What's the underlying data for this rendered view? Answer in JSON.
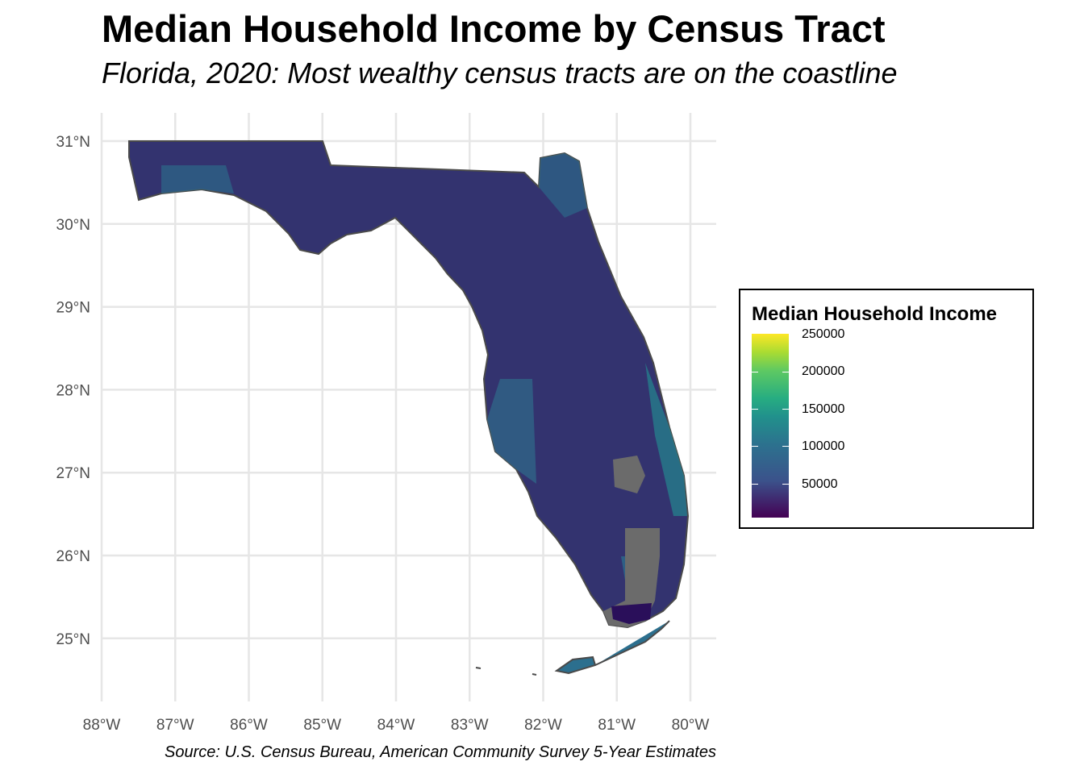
{
  "title": "Median Household Income by Census Tract",
  "subtitle": "Florida, 2020: Most wealthy census tracts are on the coastline",
  "caption": "Source: U.S. Census Bureau, American Community Survey 5-Year Estimates",
  "map": {
    "region": "Florida",
    "projection": "longitude/latitude",
    "grid": true,
    "lat_ticks": [
      "31°N",
      "30°N",
      "29°N",
      "28°N",
      "27°N",
      "26°N",
      "25°N"
    ],
    "lon_ticks": [
      "88°W",
      "87°W",
      "86°W",
      "85°W",
      "84°W",
      "83°W",
      "82°W",
      "81°W",
      "80°W"
    ],
    "colors": {
      "low": "#440154",
      "mid": "#21918c",
      "high": "#fde725",
      "missing": "#6b6b6b",
      "border": "#4a4a4a"
    }
  },
  "legend": {
    "title": "Median Household Income",
    "position": "right",
    "scale": "viridis",
    "range": [
      0,
      250000
    ],
    "labels": [
      "250000",
      "200000",
      "150000",
      "100000",
      "50000"
    ]
  }
}
